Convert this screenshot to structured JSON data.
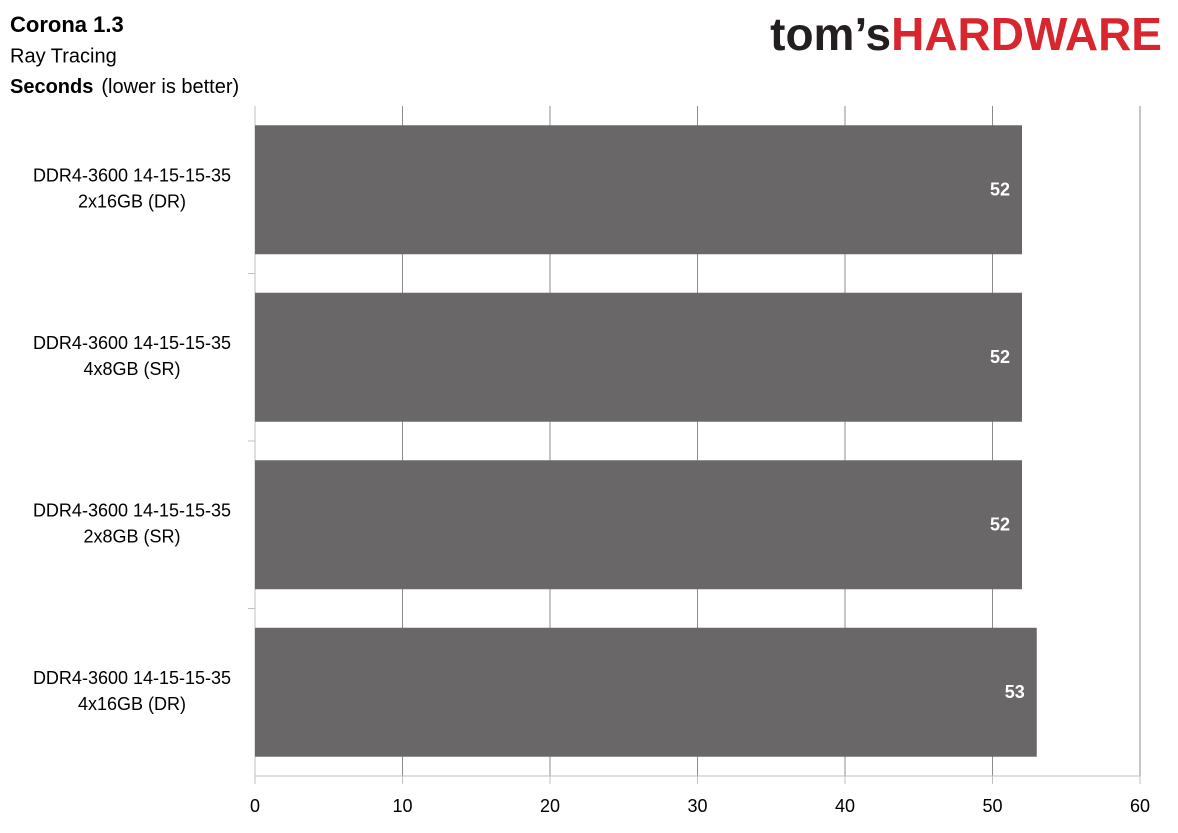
{
  "chart_data": {
    "type": "bar",
    "orientation": "horizontal",
    "title": "Corona 1.3",
    "subtitle": "Ray Tracing",
    "x_label": "Seconds",
    "x_label_note": "(lower is better)",
    "logo": [
      "tom’s",
      "HARDWARE"
    ],
    "categories": [
      [
        "DDR4-3600 14-15-15-35",
        "2x16GB (DR)"
      ],
      [
        "DDR4-3600 14-15-15-35",
        "4x8GB (SR)"
      ],
      [
        "DDR4-3600 14-15-15-35",
        "2x8GB (SR)"
      ],
      [
        "DDR4-3600 14-15-15-35",
        "4x16GB (DR)"
      ]
    ],
    "values": [
      52,
      52,
      52,
      53
    ],
    "color": "#696767",
    "xlim": [
      0,
      60
    ],
    "xticks": [
      0,
      10,
      20,
      30,
      40,
      50,
      60
    ],
    "grid": true
  }
}
